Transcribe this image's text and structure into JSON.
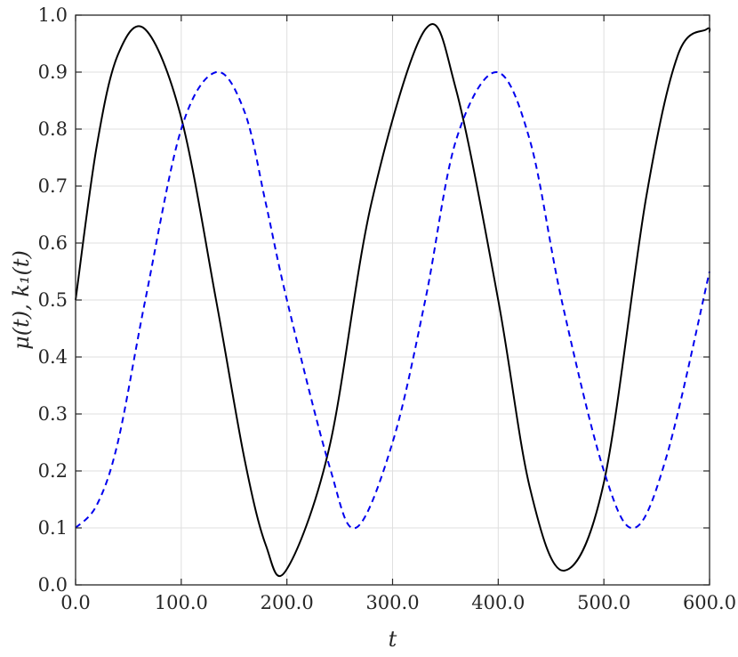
{
  "chart_data": {
    "type": "line",
    "xlabel": "t",
    "ylabel": "μ(t), k₁(t)",
    "xlim": [
      0,
      600
    ],
    "ylim": [
      0,
      1
    ],
    "grid": true,
    "x_ticks": [
      "0.0",
      "100.0",
      "200.0",
      "300.0",
      "400.0",
      "500.0",
      "600.0"
    ],
    "y_ticks": [
      "0.0",
      "0.1",
      "0.2",
      "0.3",
      "0.4",
      "0.5",
      "0.6",
      "0.7",
      "0.8",
      "0.9",
      "1.0"
    ],
    "series": [
      {
        "style": "solid",
        "color": "#000000",
        "x": [
          0,
          20,
          40,
          66,
          100,
          133,
          160,
          180,
          199,
          240,
          280,
          331,
          360,
          400,
          430,
          462,
          500,
          540,
          570,
          597,
          600
        ],
        "y": [
          0.5,
          0.77,
          0.93,
          0.975,
          0.82,
          0.5,
          0.22,
          0.07,
          0.025,
          0.24,
          0.67,
          0.975,
          0.87,
          0.5,
          0.17,
          0.025,
          0.18,
          0.68,
          0.93,
          0.975,
          0.97
        ]
      },
      {
        "style": "dashed",
        "color": "#0000ee",
        "x": [
          0,
          20,
          40,
          66,
          100,
          133,
          160,
          180,
          200,
          240,
          265,
          300,
          331,
          360,
          398,
          430,
          460,
          500,
          529,
          560,
          600
        ],
        "y": [
          0.1,
          0.14,
          0.25,
          0.5,
          0.8,
          0.9,
          0.83,
          0.67,
          0.5,
          0.21,
          0.1,
          0.25,
          0.5,
          0.78,
          0.9,
          0.78,
          0.5,
          0.2,
          0.1,
          0.23,
          0.55
        ]
      }
    ]
  }
}
